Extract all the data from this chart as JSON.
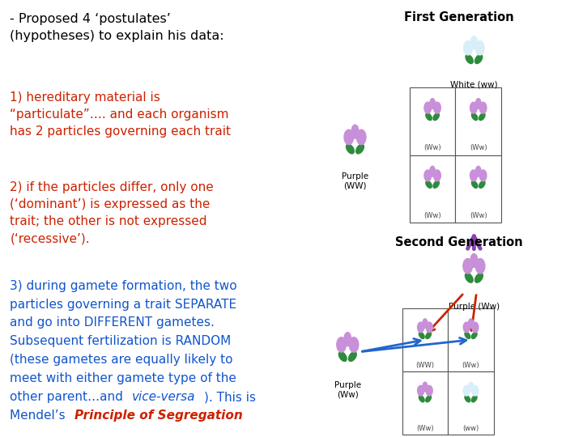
{
  "background_color": "#ffffff",
  "title_text": "- Proposed 4 ‘postulates’\n(hypotheses) to explain his data:",
  "title_color": "#000000",
  "title_fontsize": 11.5,
  "block1_text": "1) hereditary material is\n“particulate”…. and each organism\nhas 2 particles governing each trait",
  "block1_color": "#cc2200",
  "block1_fontsize": 11,
  "block2_text": "2) if the particles differ, only one\n(‘dominant’) is expressed as the\ntrait; the other is not expressed\n(‘recessive’).",
  "block2_color": "#cc2200",
  "block2_fontsize": 11,
  "block3_lines": [
    "3) during gamete formation, the two",
    "particles governing a trait SEPARATE",
    "and go into DIFFERENT gametes.",
    "Subsequent fertilization is RANDOM",
    "(these gametes are equally likely to",
    "meet with either gamete type of the",
    "other parent…and vice-versa). This is",
    "Mendel’s "
  ],
  "block3_color_blue": "#1155cc",
  "block3_color_red": "#cc2200",
  "block3_fontsize": 11,
  "vice_versa_italic": true,
  "principle_text": "Principle of Segregation",
  "first_gen_label": "First Generation",
  "white_ww_label": "White (ww)",
  "purple_ww_label": "Purple\n(WW)",
  "second_gen_label": "Second Generation",
  "purple_ww2_label": "Purple (Ww)",
  "purple_ww3_label": "Purple\n(Ww)",
  "cell_labels_gen1": [
    "(Ww)",
    "(Ww)",
    "(Ww)",
    "(Ww)"
  ],
  "cell_labels_gen2": [
    "(WW)",
    "(Ww)",
    "(Ww)",
    "(ww)"
  ],
  "purple_color": "#c890d8",
  "white_color": "#d8eef8",
  "leaf_color": "#2d8b3c",
  "arrow_purple": "#8844aa",
  "arrow_blue": "#2266cc",
  "arrow_red": "#cc2200"
}
